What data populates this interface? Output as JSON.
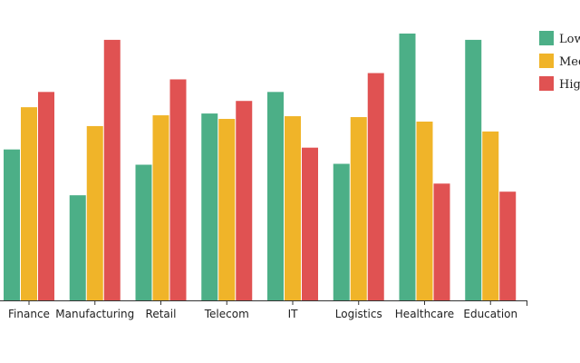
{
  "chart_data": {
    "type": "bar",
    "categories": [
      "Finance",
      "Manufacturing",
      "Retail",
      "Telecom",
      "IT",
      "Logistics",
      "Healthcare",
      "Education"
    ],
    "series": [
      {
        "name": "Low",
        "color": "#4caf87",
        "values": [
          168,
          117,
          151,
          208,
          232,
          152,
          297,
          290
        ]
      },
      {
        "name": "Medium",
        "color": "#f0b429",
        "values": [
          215,
          194,
          206,
          202,
          205,
          204,
          199,
          188
        ]
      },
      {
        "name": "High",
        "color": "#e05252",
        "values": [
          232,
          290,
          246,
          222,
          170,
          253,
          130,
          121
        ]
      }
    ],
    "ylim": [
      0,
      300
    ],
    "grid": false,
    "legend_position": "top-right",
    "title": "",
    "xlabel": "",
    "ylabel": ""
  }
}
